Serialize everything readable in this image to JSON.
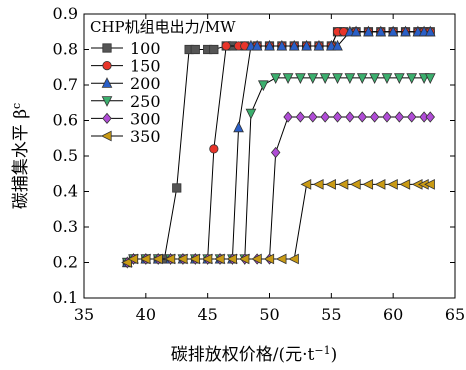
{
  "chart_data": {
    "type": "line",
    "xlabel": "碳排放权价格/(元·t",
    "xlabel_sup": "−1",
    "xlabel_suffix": ")",
    "ylabel_main": "碳捕集水平 β",
    "ylabel_sup": "c",
    "xlim": [
      35,
      65
    ],
    "ylim": [
      0.1,
      0.9
    ],
    "xticks": [
      35,
      40,
      45,
      50,
      55,
      60,
      65
    ],
    "yticks": [
      0.1,
      0.2,
      0.3,
      0.4,
      0.5,
      0.6,
      0.7,
      0.8,
      0.9
    ],
    "grid": false,
    "legend_title": "CHP机组电出力/MW",
    "legend_position": "top-left",
    "series": [
      {
        "name": "100",
        "marker": "square",
        "color": "#555555",
        "x": [
          38.5,
          39,
          40,
          41,
          41.5,
          42.5,
          43.5,
          44,
          45,
          45.5,
          46.5,
          47,
          48,
          49,
          50,
          51,
          52,
          53,
          54,
          55,
          55.5,
          56,
          57,
          58,
          59,
          60,
          61,
          62,
          62.5,
          63
        ],
        "y": [
          0.2,
          0.21,
          0.21,
          0.21,
          0.21,
          0.41,
          0.8,
          0.8,
          0.8,
          0.8,
          0.81,
          0.81,
          0.81,
          0.81,
          0.81,
          0.81,
          0.81,
          0.81,
          0.81,
          0.81,
          0.85,
          0.85,
          0.85,
          0.85,
          0.85,
          0.85,
          0.85,
          0.85,
          0.85,
          0.85
        ]
      },
      {
        "name": "150",
        "marker": "circle",
        "color": "#e8352a",
        "x": [
          38.5,
          39,
          40,
          41,
          42,
          43,
          44,
          45,
          45.5,
          46.5,
          47.5,
          48,
          49,
          50,
          51,
          52,
          53,
          54,
          55,
          55.5,
          56,
          57,
          58,
          59,
          60,
          61,
          62,
          62.5,
          63
        ],
        "y": [
          0.2,
          0.21,
          0.21,
          0.21,
          0.21,
          0.21,
          0.21,
          0.21,
          0.52,
          0.81,
          0.81,
          0.81,
          0.81,
          0.81,
          0.81,
          0.81,
          0.81,
          0.81,
          0.81,
          0.85,
          0.85,
          0.85,
          0.85,
          0.85,
          0.85,
          0.85,
          0.85,
          0.85,
          0.85
        ]
      },
      {
        "name": "200",
        "marker": "triangle-up",
        "color": "#2a5fc8",
        "x": [
          38.5,
          39,
          40,
          41,
          42,
          43,
          44,
          45,
          46,
          47,
          47.5,
          48.5,
          49,
          50,
          51,
          52,
          53,
          54,
          55,
          55.5,
          56.5,
          57,
          58,
          59,
          60,
          61,
          62,
          62.5,
          63
        ],
        "y": [
          0.2,
          0.21,
          0.21,
          0.21,
          0.21,
          0.21,
          0.21,
          0.21,
          0.21,
          0.21,
          0.58,
          0.81,
          0.81,
          0.81,
          0.81,
          0.81,
          0.81,
          0.81,
          0.81,
          0.81,
          0.85,
          0.85,
          0.85,
          0.85,
          0.85,
          0.85,
          0.85,
          0.85,
          0.85
        ]
      },
      {
        "name": "250",
        "marker": "triangle-down",
        "color": "#3caf6e",
        "x": [
          38.5,
          39,
          40,
          41,
          42,
          43,
          44,
          45,
          46,
          47,
          48,
          48.5,
          49.5,
          50.5,
          51.5,
          52.5,
          53.5,
          54.5,
          55.5,
          56.5,
          57.5,
          58.5,
          59.5,
          60.5,
          61.5,
          62.5,
          63
        ],
        "y": [
          0.2,
          0.21,
          0.21,
          0.21,
          0.21,
          0.21,
          0.21,
          0.21,
          0.21,
          0.21,
          0.21,
          0.62,
          0.7,
          0.72,
          0.72,
          0.72,
          0.72,
          0.72,
          0.72,
          0.72,
          0.72,
          0.72,
          0.72,
          0.72,
          0.72,
          0.72,
          0.72
        ]
      },
      {
        "name": "300",
        "marker": "diamond",
        "color": "#b04cd6",
        "x": [
          38.5,
          39,
          40,
          41,
          42,
          43,
          44,
          45,
          46,
          47,
          48,
          49,
          50,
          50.5,
          51.5,
          52.5,
          53.5,
          54.5,
          55.5,
          56.5,
          57.5,
          58.5,
          59.5,
          60.5,
          61.5,
          62.5,
          63
        ],
        "y": [
          0.2,
          0.21,
          0.21,
          0.21,
          0.21,
          0.21,
          0.21,
          0.21,
          0.21,
          0.21,
          0.21,
          0.21,
          0.21,
          0.51,
          0.61,
          0.61,
          0.61,
          0.61,
          0.61,
          0.61,
          0.61,
          0.61,
          0.61,
          0.61,
          0.61,
          0.61,
          0.61
        ]
      },
      {
        "name": "350",
        "marker": "triangle-left",
        "color": "#c99a14",
        "x": [
          38.5,
          39,
          40,
          41,
          42,
          43,
          44,
          45,
          46,
          47,
          48,
          49,
          50,
          51,
          52,
          53,
          54,
          55,
          56,
          57,
          58,
          59,
          60,
          61,
          62,
          62.5,
          63
        ],
        "y": [
          0.2,
          0.21,
          0.21,
          0.21,
          0.21,
          0.21,
          0.21,
          0.21,
          0.21,
          0.21,
          0.21,
          0.21,
          0.21,
          0.21,
          0.21,
          0.42,
          0.42,
          0.42,
          0.42,
          0.42,
          0.42,
          0.42,
          0.42,
          0.42,
          0.42,
          0.42,
          0.42
        ]
      }
    ]
  }
}
